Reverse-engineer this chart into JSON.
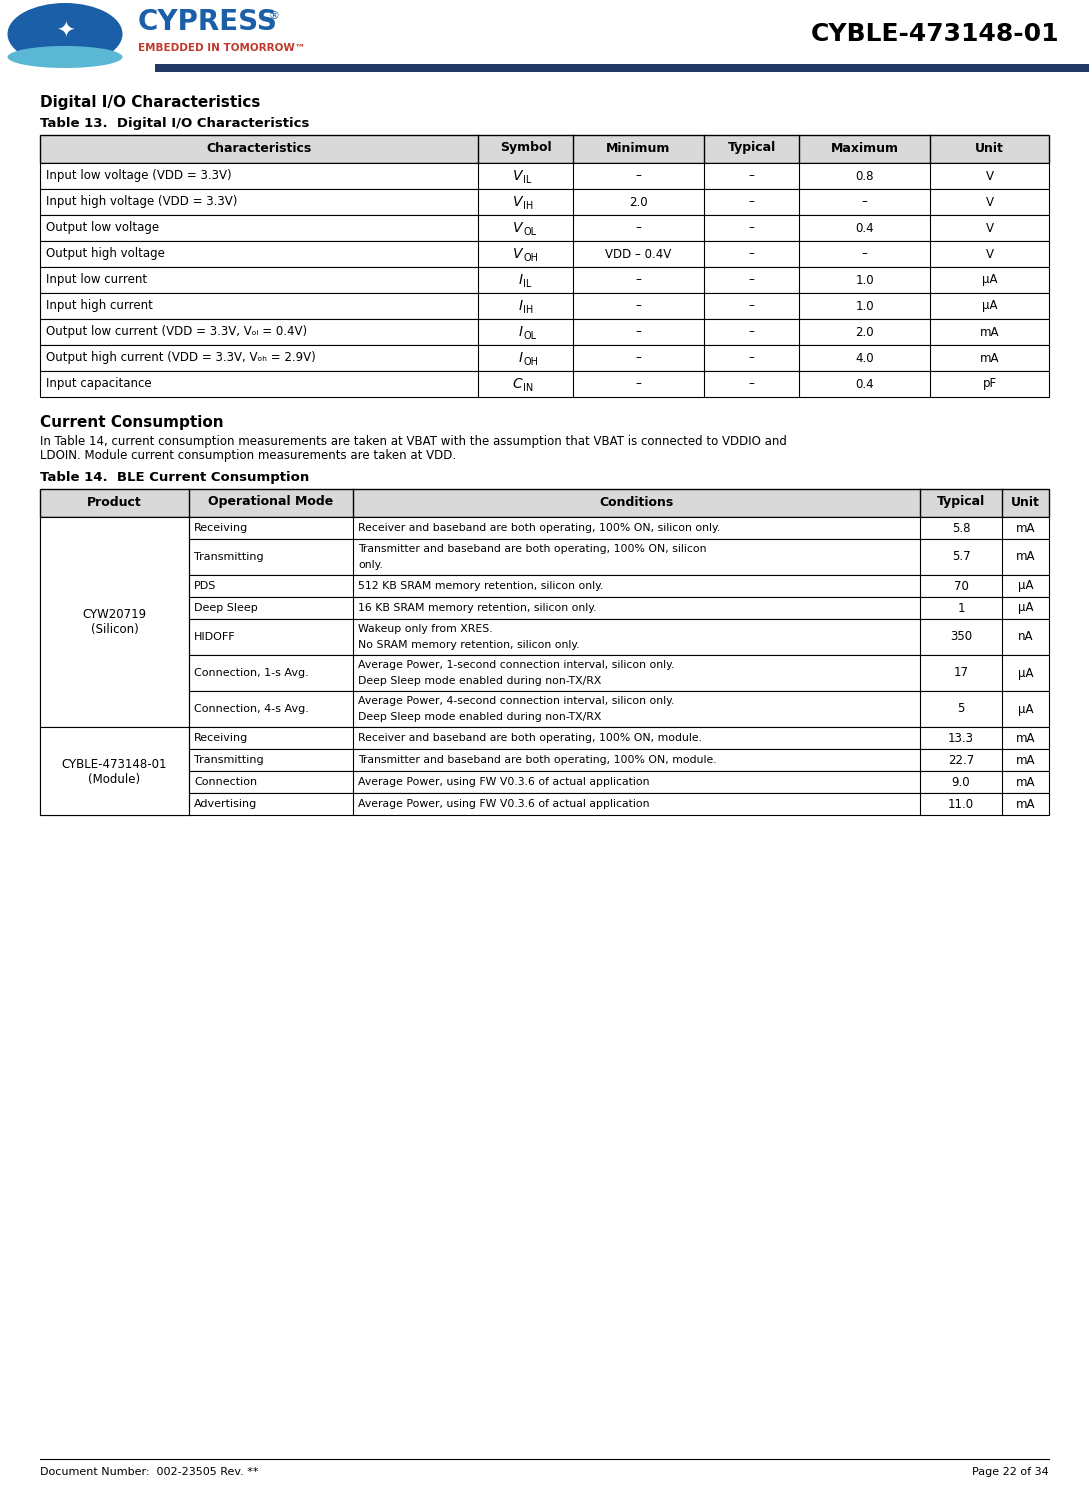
{
  "page_title": "CYBLE-473148-01",
  "doc_number": "Document Number:  002-23505 Rev. **",
  "page_number": "Page 22 of 34",
  "section_title": "Digital I/O Characteristics",
  "table13_title": "Table 13.  Digital I/O Characteristics",
  "table13_headers": [
    "Characteristics",
    "Symbol",
    "Minimum",
    "Typical",
    "Maximum",
    "Unit"
  ],
  "table13_col_chars": [
    "Input low voltage (VDD = 3.3V)",
    "Input high voltage (VDD = 3.3V)",
    "Output low voltage",
    "Output high voltage",
    "Input low current",
    "Input high current",
    "Output low current (VDD = 3.3V, Vₒₗ = 0.4V)",
    "Output high current (VDD = 3.3V, Vₒₕ = 2.9V)",
    "Input capacitance"
  ],
  "table13_rows": [
    [
      "–",
      "–",
      "0.8",
      "V"
    ],
    [
      "2.0",
      "–",
      "–",
      "V"
    ],
    [
      "–",
      "–",
      "0.4",
      "V"
    ],
    [
      "VDD – 0.4V",
      "–",
      "–",
      "V"
    ],
    [
      "–",
      "–",
      "1.0",
      "μA"
    ],
    [
      "–",
      "–",
      "1.0",
      "μA"
    ],
    [
      "–",
      "–",
      "2.0",
      "mA"
    ],
    [
      "–",
      "–",
      "4.0",
      "mA"
    ],
    [
      "–",
      "–",
      "0.4",
      "pF"
    ]
  ],
  "table13_symbols_main": [
    "V",
    "V",
    "V",
    "V",
    "I",
    "I",
    "I",
    "I",
    "C"
  ],
  "table13_symbols_sub": [
    "IL",
    "IH",
    "OL",
    "OH",
    "IL",
    "IH",
    "OL",
    "OH",
    "IN"
  ],
  "current_consumption_title": "Current Consumption",
  "cc_line1": "In Table 14, current consumption measurements are taken at VBAT with the assumption that VBAT is connected to VDDIO and",
  "cc_line2": "LDOIN. Module current consumption measurements are taken at VDD.",
  "table14_title": "Table 14.  BLE Current Consumption",
  "table14_headers": [
    "Product",
    "Operational Mode",
    "Conditions",
    "Typical",
    "Unit"
  ],
  "t14_op_modes": [
    "Receiving",
    "Transmitting",
    "PDS",
    "Deep Sleep",
    "HIDOFF",
    "Connection, 1-s Avg.",
    "Connection, 4-s Avg.",
    "Receiving",
    "Transmitting",
    "Connection",
    "Advertising"
  ],
  "t14_conditions_l1": [
    "Receiver and baseband are both operating, 100% ON, silicon only.",
    "Transmitter and baseband are both operating, 100% ON, silicon",
    "512 KB SRAM memory retention, silicon only.",
    "16 KB SRAM memory retention, silicon only.",
    "Wakeup only from XRES.",
    "Average Power, 1-second connection interval, silicon only.",
    "Average Power, 4-second connection interval, silicon only.",
    "Receiver and baseband are both operating, 100% ON, module.",
    "Transmitter and baseband are both operating, 100% ON, module.",
    "Average Power, using FW V0.3.6 of actual application",
    "Average Power, using FW V0.3.6 of actual application"
  ],
  "t14_conditions_l2": [
    "",
    "only.",
    "",
    "",
    "No SRAM memory retention, silicon only.",
    "Deep Sleep mode enabled during non-TX/RX",
    "Deep Sleep mode enabled during non-TX/RX",
    "",
    "",
    "",
    ""
  ],
  "t14_typical": [
    "5.8",
    "5.7",
    "70",
    "1",
    "350",
    "17",
    "5",
    "13.3",
    "22.7",
    "9.0",
    "11.0"
  ],
  "t14_unit": [
    "mA",
    "mA",
    "μA",
    "μA",
    "nA",
    "μA",
    "μA",
    "mA",
    "mA",
    "mA",
    "mA"
  ],
  "header_bg": "#d9d9d9",
  "border_color": "#000000",
  "header_bar_color": "#1f3864",
  "cypress_blue": "#1a5fa8",
  "cypress_red": "#c0392b",
  "cypress_lightblue": "#5bb8d4"
}
